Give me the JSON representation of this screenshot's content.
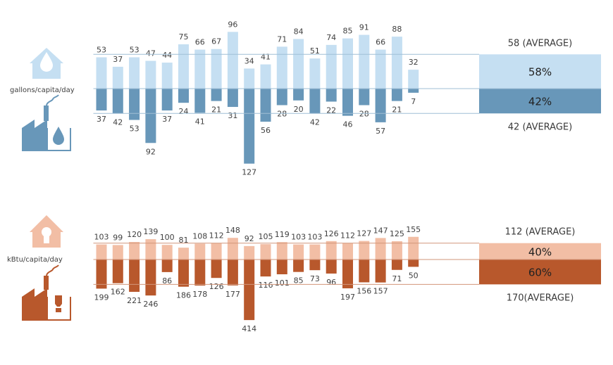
{
  "colors": {
    "water_residential": "#c5dff2",
    "water_nonresidential": "#6897b9",
    "energy_residential": "#f2bea5",
    "energy_nonresidential": "#b8582c",
    "text": "#404040"
  },
  "chart_data": [
    {
      "type": "bar",
      "unit_label": "gallons/capita/day",
      "series": [
        {
          "values": [
            53,
            37,
            53,
            47,
            44,
            75,
            66,
            67,
            96,
            34,
            41,
            71,
            84,
            51,
            74,
            85,
            91,
            66,
            88,
            32
          ]
        },
        {
          "values": [
            37,
            42,
            53,
            92,
            37,
            24,
            41,
            21,
            31,
            127,
            56,
            28,
            20,
            42,
            22,
            46,
            28,
            57,
            21,
            7
          ]
        }
      ],
      "averages": [
        {
          "value": 58,
          "label": "58 (AVERAGE)",
          "share": "58%"
        },
        {
          "value": 42,
          "label": "42 (AVERAGE)",
          "share": "42%"
        }
      ]
    },
    {
      "type": "bar",
      "unit_label": "kBtu/capita/day",
      "series": [
        {
          "values": [
            103,
            99,
            120,
            139,
            100,
            81,
            108,
            112,
            148,
            92,
            105,
            119,
            103,
            103,
            126,
            112,
            127,
            147,
            125,
            155
          ]
        },
        {
          "values": [
            199,
            162,
            221,
            246,
            86,
            186,
            178,
            126,
            177,
            414,
            116,
            101,
            85,
            73,
            96,
            197,
            156,
            157,
            71,
            50
          ]
        }
      ],
      "averages": [
        {
          "value": 112,
          "label": "112 (AVERAGE)",
          "share": "40%"
        },
        {
          "value": 170,
          "label": "170(AVERAGE)",
          "share": "60%"
        }
      ]
    }
  ]
}
